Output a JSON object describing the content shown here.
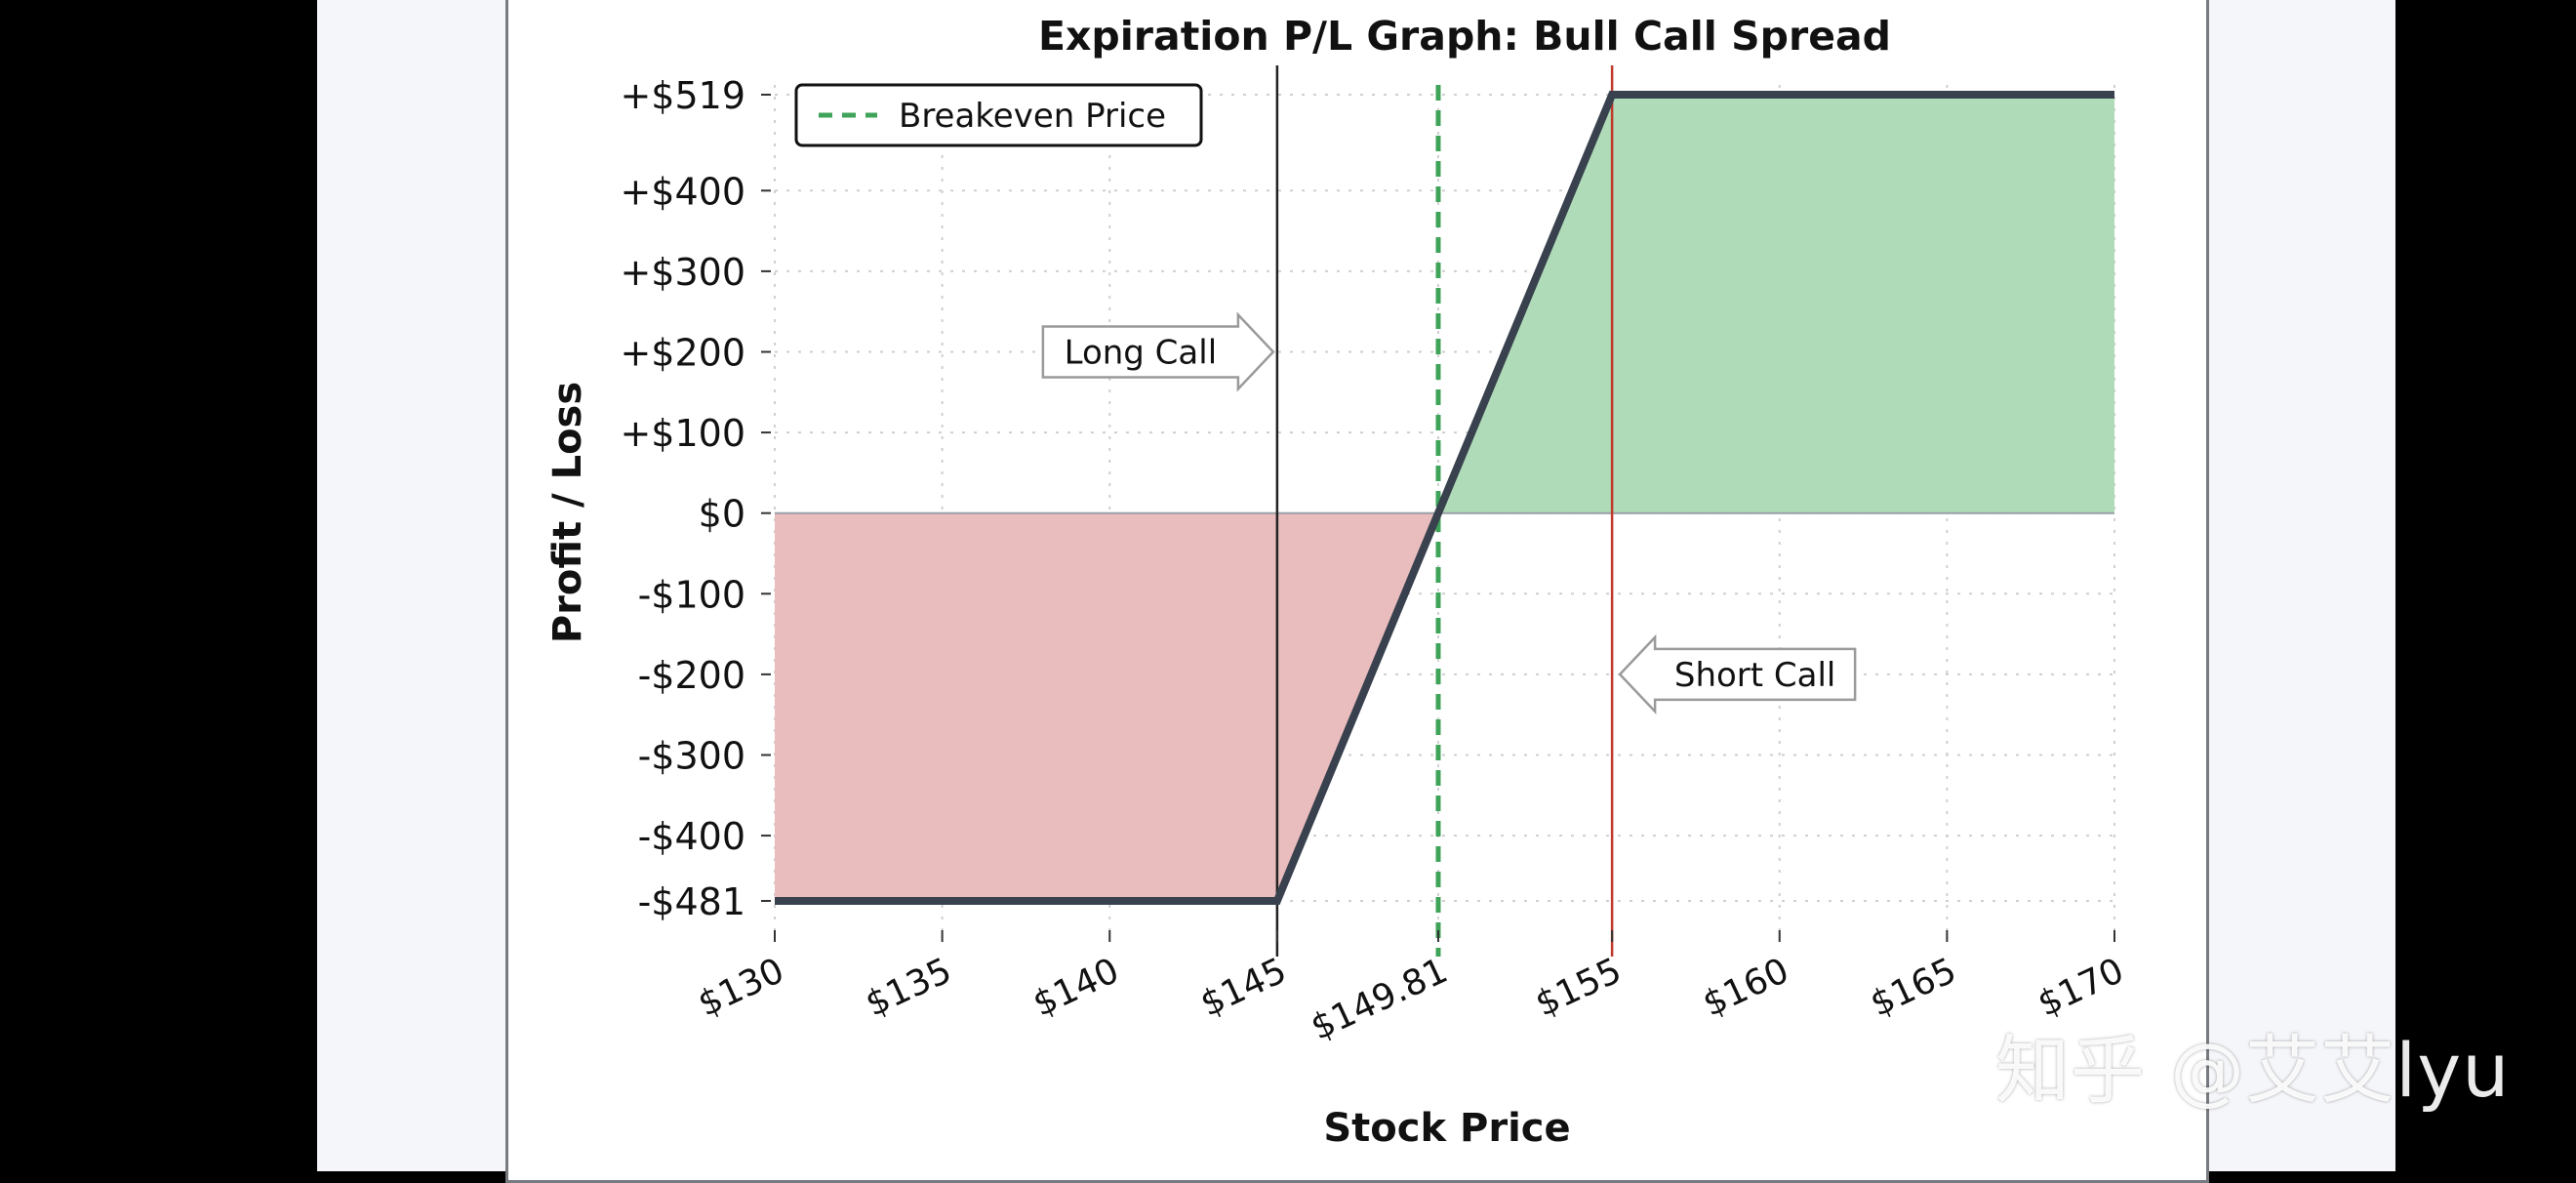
{
  "watermark": "知乎 @艾艾lyu",
  "colors": {
    "profit_fill": "#b0dbb9",
    "loss_fill": "#e9bdbe",
    "payoff_line": "#38414d",
    "breakeven_line": "#3fa45a",
    "short_call_line": "#c0392b",
    "long_call_line": "#222222",
    "grid": "#cfcfcf"
  },
  "chart_data": {
    "type": "line",
    "title": "Expiration P/L Graph: Bull Call Spread",
    "xlabel": "Stock Price",
    "ylabel": "Profit / Loss",
    "xlim": [
      130,
      170
    ],
    "ylim": [
      -481,
      519
    ],
    "x_ticks": [
      {
        "value": 130,
        "label": "$130"
      },
      {
        "value": 135,
        "label": "$135"
      },
      {
        "value": 140,
        "label": "$140"
      },
      {
        "value": 145,
        "label": "$145"
      },
      {
        "value": 149.81,
        "label": "$149.81"
      },
      {
        "value": 155,
        "label": "$155"
      },
      {
        "value": 160,
        "label": "$160"
      },
      {
        "value": 165,
        "label": "$165"
      },
      {
        "value": 170,
        "label": "$170"
      }
    ],
    "y_ticks": [
      {
        "value": 519,
        "label": "+$519"
      },
      {
        "value": 400,
        "label": "+$400"
      },
      {
        "value": 300,
        "label": "+$300"
      },
      {
        "value": 200,
        "label": "+$200"
      },
      {
        "value": 100,
        "label": "+$100"
      },
      {
        "value": 0,
        "label": "$0"
      },
      {
        "value": -100,
        "label": "-$100"
      },
      {
        "value": -200,
        "label": "-$200"
      },
      {
        "value": -300,
        "label": "-$300"
      },
      {
        "value": -400,
        "label": "-$400"
      },
      {
        "value": -481,
        "label": "-$481"
      }
    ],
    "series": [
      {
        "x": [
          130,
          145,
          155,
          170
        ],
        "y": [
          -481,
          -481,
          519,
          519
        ]
      }
    ],
    "breakeven": {
      "x": 149.81,
      "label": "Breakeven Price"
    },
    "strikes": [
      {
        "x": 145,
        "label": "Long Call",
        "arrow": "right"
      },
      {
        "x": 155,
        "label": "Short Call",
        "arrow": "left"
      }
    ],
    "legend": {
      "position": "top-left",
      "entries": [
        "Breakeven Price"
      ]
    },
    "grid": true
  }
}
